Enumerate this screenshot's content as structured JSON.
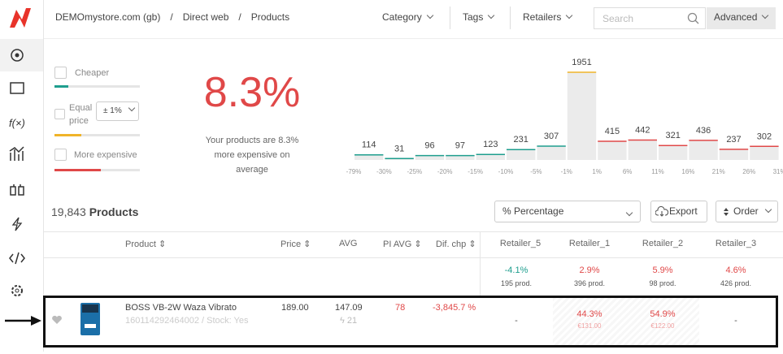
{
  "header": {
    "breadcrumb": [
      "DEMOmystore.com (gb)",
      "Direct web",
      "Products"
    ],
    "filters": [
      "Category",
      "Tags",
      "Retailers"
    ],
    "search_placeholder": "Search",
    "advanced": "Advanced"
  },
  "price_filters": {
    "cheaper": "Cheaper",
    "equal": "Equal price",
    "tolerance": "± 1%",
    "more_expensive": "More expensive"
  },
  "summary": {
    "value": "8.3%",
    "description": "Your products are 8.3% more expensive on average"
  },
  "chart_data": {
    "type": "histogram",
    "bins": [
      {
        "value": -79,
        "label": "-79%"
      },
      {
        "value": -30,
        "label": "-30%"
      },
      {
        "value": -25,
        "label": "-25%"
      },
      {
        "value": -20,
        "label": "-20%"
      },
      {
        "value": -15,
        "label": "-15%"
      },
      {
        "value": -10,
        "label": "-10%"
      },
      {
        "value": -5,
        "label": "-5%"
      },
      {
        "value": -1,
        "label": "-1%"
      },
      {
        "value": 1,
        "label": "1%"
      },
      {
        "value": 6,
        "label": "6%"
      },
      {
        "value": 11,
        "label": "11%"
      },
      {
        "value": 16,
        "label": "16%"
      },
      {
        "value": 21,
        "label": "21%"
      },
      {
        "value": 26,
        "label": "26%"
      },
      {
        "value": 31,
        "label": "31%"
      }
    ],
    "values": [
      114,
      31,
      96,
      97,
      123,
      231,
      307,
      1951,
      415,
      442,
      321,
      436,
      237,
      302
    ],
    "colors": [
      "#1e9e8e",
      "#1e9e8e",
      "#1e9e8e",
      "#1e9e8e",
      "#1e9e8e",
      "#1e9e8e",
      "#1e9e8e",
      "#f0b429",
      "#e04848",
      "#e04848",
      "#e04848",
      "#e04848",
      "#e04848",
      "#e04848"
    ]
  },
  "toolbar": {
    "count": "19,843",
    "count_label": "Products",
    "display": "% Percentage",
    "export": "Export",
    "order": "Order"
  },
  "table": {
    "columns": [
      "Product",
      "Price",
      "AVG",
      "PI AVG",
      "Dif. chp",
      "Retailer_5",
      "Retailer_1",
      "Retailer_2",
      "Retailer_3"
    ],
    "summary_row": [
      {
        "value": "-4.1%",
        "count": "195 prod."
      },
      {
        "value": "2.9%",
        "count": "396 prod."
      },
      {
        "value": "5.9%",
        "count": "98 prod."
      },
      {
        "value": "4.6%",
        "count": "426 prod."
      }
    ],
    "rows": [
      {
        "product": "BOSS VB-2W Waza Vibrato",
        "sku": "160114292464002 / Stock: Yes",
        "price": "189.00",
        "avg": "147.09",
        "avg_count": "21",
        "pi_avg": "78",
        "dif": "-3,845.7 %",
        "retailers": [
          {
            "value": "-"
          },
          {
            "value": "44.3%",
            "price": "€131.00"
          },
          {
            "value": "54.9%",
            "price": "€122.00"
          },
          {
            "value": "-"
          }
        ]
      }
    ]
  }
}
